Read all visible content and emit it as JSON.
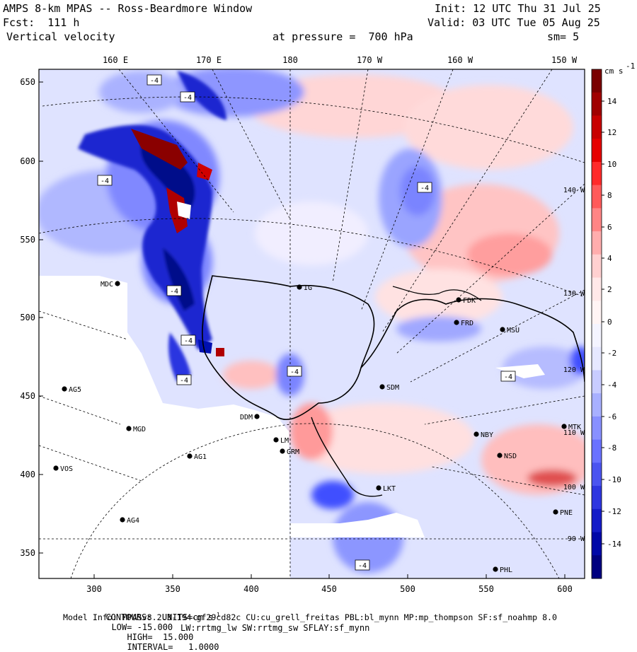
{
  "header": {
    "title": "AMPS 8-km MPAS -- Ross-Beardmore Window",
    "fcst": "Fcst:  111 h",
    "field": "Vertical velocity",
    "init": "Init: 12 UTC Thu 31 Jul 25",
    "valid": "Valid: 03 UTC Tue 05 Aug 25",
    "pressure": "at pressure =  700 hPa",
    "smooth": "sm= 5"
  },
  "axes": {
    "top_lon_labels": [
      "160 E",
      "170 E",
      "180",
      "170 W",
      "160 W",
      "150 W"
    ],
    "left_y_labels": [
      "650",
      "600",
      "550",
      "500",
      "450",
      "400",
      "350"
    ],
    "bottom_x_labels": [
      "300",
      "350",
      "400",
      "450",
      "500",
      "550",
      "600"
    ],
    "right_lon_labels": [
      "140 W",
      "130 W",
      "120 W",
      "110 W",
      "100 W",
      "90 W"
    ]
  },
  "colorbar": {
    "units": "cm s",
    "units_exp": "-1",
    "labels": [
      "14",
      "12",
      "10",
      "8",
      "6",
      "4",
      "2",
      "0",
      "-2",
      "-4",
      "-6",
      "-8",
      "-10",
      "-12",
      "-14"
    ],
    "colors": [
      "#7a0000",
      "#a00000",
      "#c80000",
      "#e60000",
      "#ff2a2a",
      "#ff5a5a",
      "#ff8585",
      "#ffadad",
      "#ffd0d0",
      "#ffe8e8",
      "#fff4f4",
      "#f4f4ff",
      "#e6e8ff",
      "#c8ccff",
      "#a8b0ff",
      "#8890ff",
      "#6a72ff",
      "#4b54f0",
      "#2e36e0",
      "#141cc8",
      "#0008a8",
      "#000080"
    ]
  },
  "stations": [
    {
      "name": "MDC"
    },
    {
      "name": "AG5"
    },
    {
      "name": "MGD"
    },
    {
      "name": "VOS"
    },
    {
      "name": "AG1"
    },
    {
      "name": "AG4"
    },
    {
      "name": "DDM"
    },
    {
      "name": "GRM"
    },
    {
      "name": "SDM"
    },
    {
      "name": "FDK"
    },
    {
      "name": "FRD"
    },
    {
      "name": "MSU"
    },
    {
      "name": "NBY"
    },
    {
      "name": "NSD"
    },
    {
      "name": "MTK"
    },
    {
      "name": "PNE"
    },
    {
      "name": "PHL"
    },
    {
      "name": "LKT"
    },
    {
      "name": "IG"
    },
    {
      "name": "LM"
    }
  ],
  "contour_labels": [
    "-4",
    "-4",
    "-4",
    "-4",
    "-4",
    "-4",
    "-4",
    "-4",
    "-4",
    "-4"
  ],
  "footer": {
    "contours": "CONTOURS:  UNITS=cm s",
    "units_exp": "-1",
    "low": "LOW= -15.000",
    "high": "HIGH=  15.000",
    "interval": "INTERVAL=   1.0000",
    "model_info": "Model Info: MPASv8.2.3-194-gf29cd82c CU:cu_grell_freitas PBL:bl_mynn MP:mp_thompson SF:sf_noahmp 8.0",
    "physics": "LW:rrtmg_lw SW:rrtmg_sw SFLAY:sf_mynn"
  }
}
